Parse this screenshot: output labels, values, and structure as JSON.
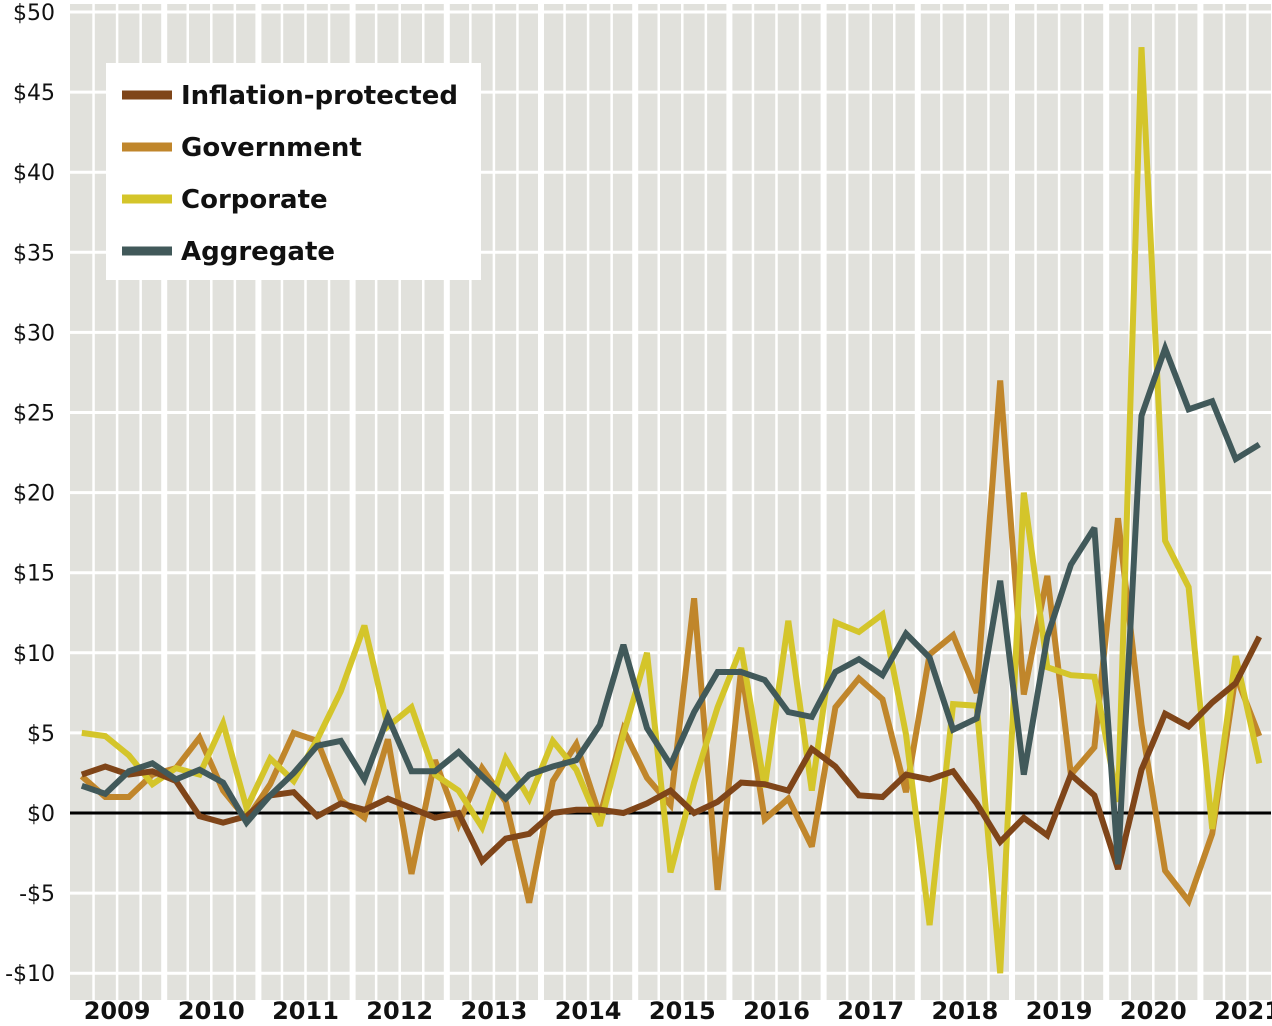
{
  "chart_data": {
    "type": "line",
    "title": "",
    "xlabel": "",
    "ylabel": "",
    "ylim": [
      -10,
      50
    ],
    "yticks": [
      50,
      45,
      40,
      35,
      30,
      25,
      20,
      15,
      10,
      5,
      0,
      -5,
      -10
    ],
    "ytick_labels": [
      "$50",
      "$45",
      "$40",
      "$35",
      "$30",
      "$25",
      "$20",
      "$15",
      "$10",
      "$5",
      "$0",
      "-$5",
      "-$10"
    ],
    "x_periods": "quarterly, 2009 Q1 to 2021 Q3",
    "x_tick_labels": [
      "2009",
      "2010",
      "2011",
      "2012",
      "2013",
      "2014",
      "2015",
      "2016",
      "2017",
      "2018",
      "2019",
      "2020",
      "2021"
    ],
    "grid": true,
    "legend_position": "top-left",
    "series": [
      {
        "name": "Inflation-protected",
        "color": "#7f4519",
        "values": [
          2.4,
          2.9,
          2.4,
          2.6,
          2.0,
          -0.2,
          -0.6,
          -0.2,
          1.1,
          1.3,
          -0.2,
          0.6,
          0.2,
          0.9,
          0.3,
          -0.3,
          0.0,
          -3.0,
          -1.6,
          -1.3,
          0.0,
          0.2,
          0.2,
          0.0,
          0.6,
          1.4,
          0.0,
          0.7,
          1.9,
          1.8,
          1.4,
          4.0,
          2.9,
          1.1,
          1.0,
          2.4,
          2.1,
          2.6,
          0.6,
          -1.8,
          -0.3,
          -1.4,
          2.4,
          1.1,
          -3.5,
          2.7,
          6.2,
          5.4,
          6.9,
          8.1,
          11.0
        ]
      },
      {
        "name": "Government",
        "color": "#c0862b",
        "values": [
          2.3,
          1.0,
          1.0,
          2.4,
          2.8,
          4.7,
          1.4,
          -0.4,
          1.8,
          5.0,
          4.5,
          0.8,
          -0.3,
          4.6,
          -3.8,
          3.3,
          -0.7,
          2.8,
          0.7,
          -5.6,
          2.0,
          4.3,
          -0.2,
          5.2,
          2.2,
          0.5,
          13.4,
          -4.8,
          9.0,
          -0.4,
          0.9,
          -2.1,
          6.6,
          8.4,
          7.1,
          1.3,
          9.9,
          11.1,
          7.5,
          27.0,
          7.4,
          14.8,
          2.4,
          4.1,
          18.4,
          5.5,
          -3.6,
          -5.5,
          -1.3,
          8.6,
          4.8
        ]
      },
      {
        "name": "Corporate",
        "color": "#d4c52a",
        "values": [
          5.0,
          4.8,
          3.6,
          1.8,
          2.8,
          2.4,
          5.6,
          0.3,
          3.4,
          2.0,
          4.6,
          7.6,
          11.7,
          5.4,
          6.6,
          2.4,
          1.4,
          -0.9,
          3.4,
          0.9,
          4.5,
          2.7,
          -0.8,
          4.9,
          10.0,
          -3.7,
          1.9,
          6.6,
          10.3,
          1.6,
          12.0,
          1.4,
          11.9,
          11.3,
          12.4,
          4.9,
          -7.0,
          6.8,
          6.7,
          -10.0,
          20.0,
          9.1,
          8.6,
          8.5,
          0.7,
          47.8,
          17.0,
          14.1,
          -1.0,
          9.8,
          3.1
        ]
      },
      {
        "name": "Aggregate",
        "color": "#41595a",
        "values": [
          1.7,
          1.2,
          2.6,
          3.1,
          2.1,
          2.7,
          1.9,
          -0.6,
          1.1,
          2.5,
          4.2,
          4.5,
          2.1,
          6.0,
          2.6,
          2.6,
          3.8,
          2.3,
          0.9,
          2.4,
          2.9,
          3.3,
          5.5,
          10.5,
          5.3,
          3.0,
          6.3,
          8.8,
          8.8,
          8.3,
          6.3,
          6.0,
          8.8,
          9.6,
          8.6,
          11.2,
          9.7,
          5.2,
          5.9,
          14.5,
          2.4,
          11.0,
          15.5,
          17.8,
          -3.2,
          24.8,
          29.0,
          25.2,
          25.7,
          22.1,
          23.0
        ]
      }
    ]
  }
}
